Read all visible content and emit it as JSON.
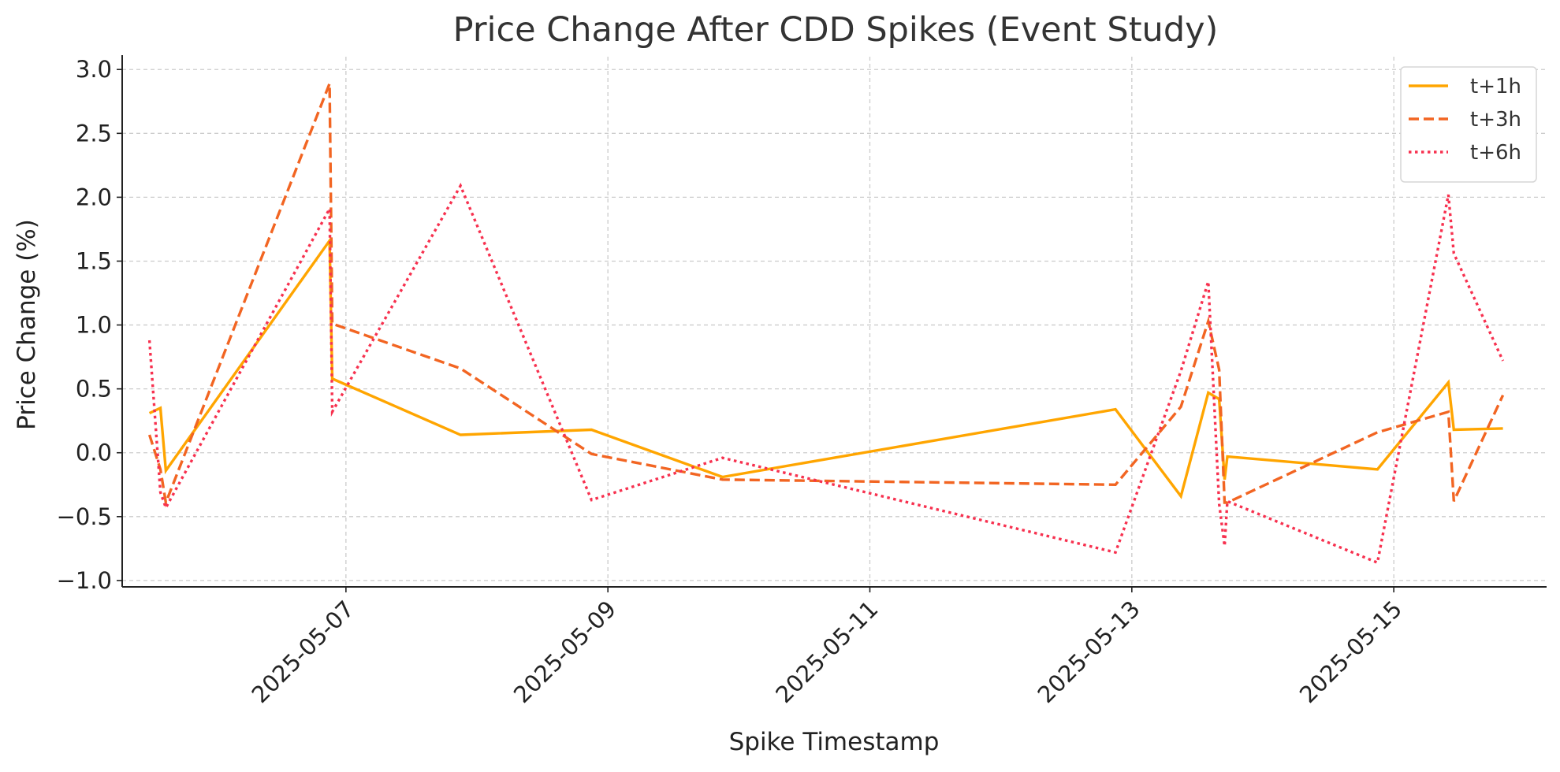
{
  "chart_data": {
    "type": "line",
    "title": "Price Change After CDD Spikes (Event Study)",
    "xlabel": "Spike Timestamp",
    "ylabel": "Price Change (%)",
    "x_type": "datetime",
    "x": [
      "2025-05-05 12:00",
      "2025-05-05 14:00",
      "2025-05-05 15:00",
      "2025-05-06 21:00",
      "2025-05-06 21:30",
      "2025-05-07 21:00",
      "2025-05-08 21:00",
      "2025-05-09 21:00",
      "2025-05-12 21:00",
      "2025-05-13 09:00",
      "2025-05-13 14:00",
      "2025-05-13 16:00",
      "2025-05-13 17:00",
      "2025-05-13 17:30",
      "2025-05-14 21:00",
      "2025-05-15 10:00",
      "2025-05-15 11:00",
      "2025-05-15 20:00"
    ],
    "series": [
      {
        "name": "t+1h",
        "color": "#FFA500",
        "style": "solid",
        "values": [
          0.31,
          0.35,
          -0.14,
          1.66,
          0.58,
          0.14,
          0.18,
          -0.19,
          0.34,
          -0.34,
          0.47,
          0.42,
          -0.21,
          -0.03,
          -0.13,
          0.55,
          0.18,
          0.19
        ]
      },
      {
        "name": "t+3h",
        "color": "#F26522",
        "style": "dashed",
        "values": [
          0.14,
          -0.13,
          -0.39,
          2.89,
          1.01,
          0.66,
          -0.01,
          -0.21,
          -0.25,
          0.36,
          1.03,
          0.65,
          -0.39,
          -0.39,
          0.16,
          0.32,
          -0.38,
          0.45
        ]
      },
      {
        "name": "t+6h",
        "color": "#F7314F",
        "style": "dotted",
        "values": [
          0.88,
          -0.31,
          -0.43,
          1.91,
          0.32,
          2.09,
          -0.37,
          -0.04,
          -0.78,
          0.64,
          1.34,
          -0.4,
          -0.73,
          -0.38,
          -0.86,
          2.02,
          1.56,
          0.72
        ]
      }
    ],
    "xticks": [
      "2025-05-07",
      "2025-05-09",
      "2025-05-11",
      "2025-05-13",
      "2025-05-15"
    ],
    "yticks": [
      "3.0",
      "2.5",
      "2.0",
      "1.5",
      "1.0",
      "0.5",
      "0.0",
      "−0.5",
      "−1.0"
    ],
    "xlim": [
      "2025-05-05 07:00",
      "2025-05-16 04:00"
    ],
    "ylim": [
      -1.05,
      3.1
    ],
    "grid": true,
    "legend_position": "top-right"
  }
}
